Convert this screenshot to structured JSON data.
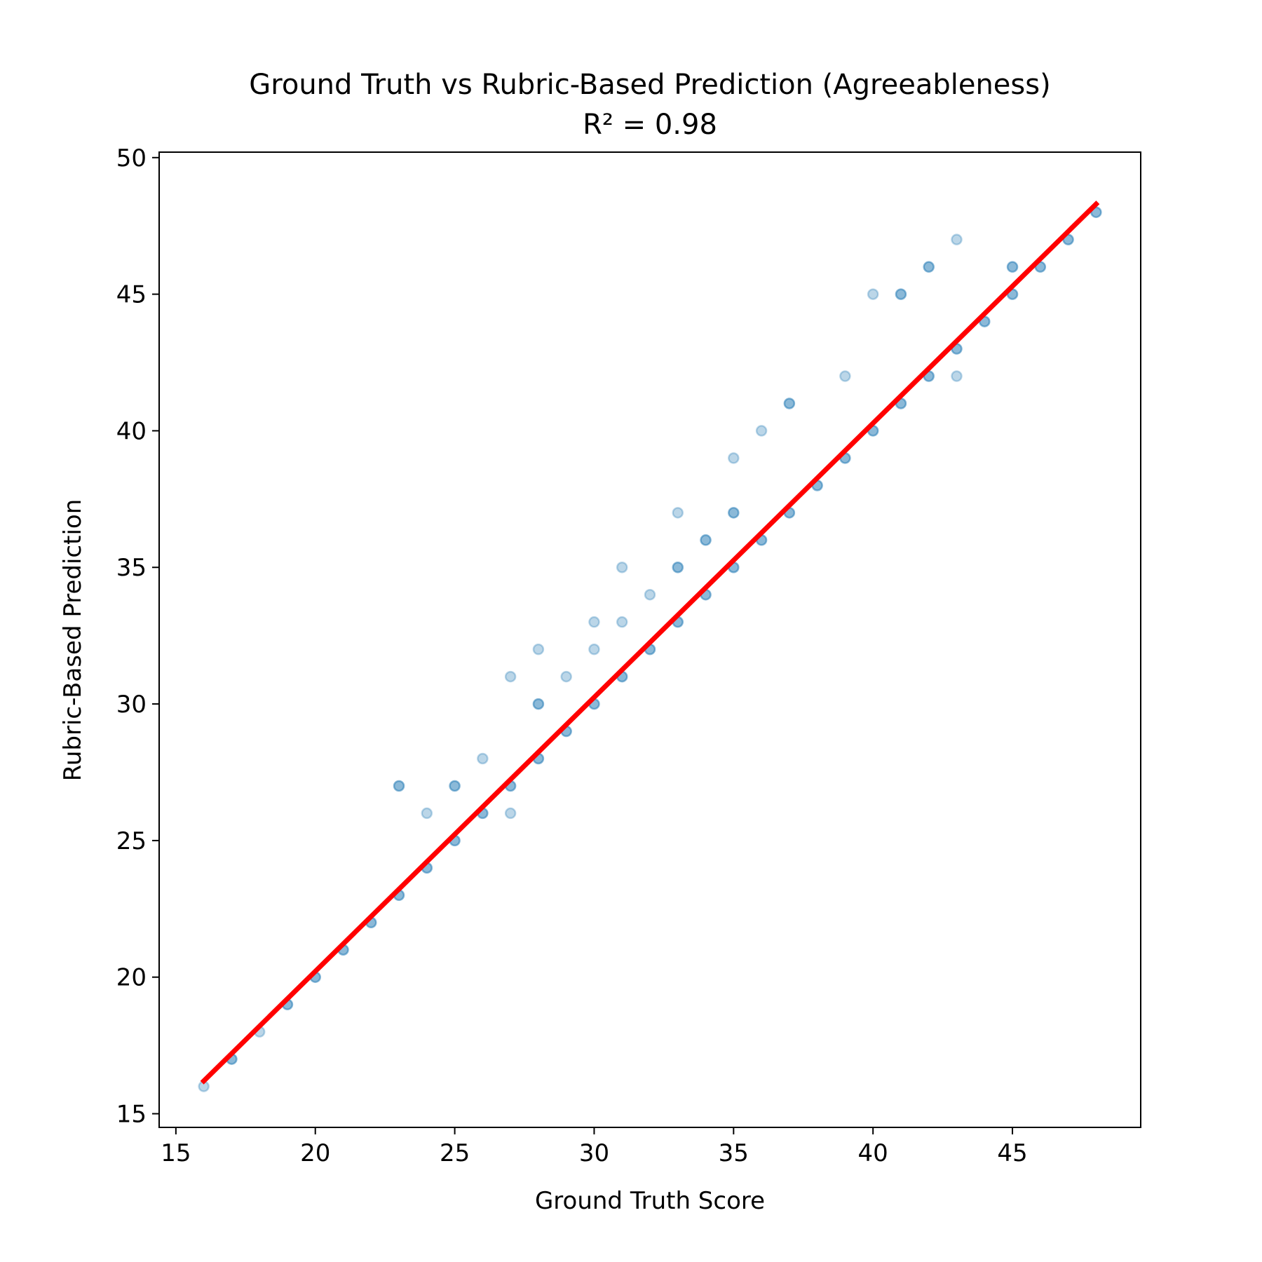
{
  "chart_data": {
    "type": "scatter",
    "title": "Ground Truth vs Rubric-Based Prediction (Agreeableness)",
    "subtitle": "R² = 0.98",
    "xlabel": "Ground Truth Score",
    "ylabel": "Rubric-Based Prediction",
    "xlim": [
      14.4,
      49.6
    ],
    "ylim": [
      14.5,
      50.2
    ],
    "xticks": [
      15,
      20,
      25,
      30,
      35,
      40,
      45
    ],
    "yticks": [
      15,
      20,
      25,
      30,
      35,
      40,
      45,
      50
    ],
    "grid": false,
    "legend": "none",
    "colors": {
      "points": "#1f77b4",
      "fit_line": "#ff0000",
      "axes": "#000000"
    },
    "series": [
      {
        "kind": "points",
        "opacity": 0.3,
        "x": [
          16,
          17,
          17,
          18,
          19,
          19,
          20,
          20,
          21,
          21,
          22,
          22,
          23,
          23,
          23,
          23,
          24,
          24,
          24,
          25,
          25,
          25,
          25,
          26,
          26,
          26,
          27,
          27,
          27,
          27,
          28,
          28,
          28,
          28,
          28,
          29,
          29,
          29,
          30,
          30,
          30,
          30,
          31,
          31,
          31,
          31,
          32,
          32,
          32,
          33,
          33,
          33,
          33,
          33,
          34,
          34,
          34,
          34,
          35,
          35,
          35,
          35,
          35,
          36,
          36,
          36,
          37,
          37,
          37,
          37,
          38,
          38,
          39,
          39,
          39,
          40,
          40,
          40,
          41,
          41,
          41,
          41,
          42,
          42,
          42,
          42,
          43,
          43,
          43,
          43,
          44,
          44,
          45,
          45,
          45,
          45,
          46,
          46,
          47,
          47,
          48,
          48
        ],
        "y": [
          16,
          17,
          17,
          18,
          19,
          19,
          20,
          20,
          21,
          21,
          22,
          22,
          23,
          23,
          27,
          27,
          24,
          24,
          26,
          25,
          25,
          27,
          27,
          26,
          26,
          28,
          27,
          27,
          31,
          26,
          28,
          28,
          30,
          30,
          32,
          29,
          29,
          31,
          30,
          30,
          32,
          33,
          31,
          31,
          33,
          35,
          32,
          32,
          34,
          33,
          33,
          35,
          35,
          37,
          34,
          34,
          36,
          36,
          35,
          35,
          37,
          37,
          39,
          36,
          36,
          40,
          37,
          37,
          41,
          41,
          38,
          38,
          39,
          39,
          42,
          40,
          40,
          45,
          41,
          41,
          45,
          45,
          42,
          42,
          46,
          46,
          43,
          43,
          42,
          47,
          44,
          44,
          45,
          45,
          46,
          46,
          46,
          46,
          47,
          47,
          48,
          48
        ]
      },
      {
        "kind": "fit_line",
        "x": [
          16,
          48
        ],
        "y": [
          16.2,
          48.3
        ]
      }
    ]
  }
}
